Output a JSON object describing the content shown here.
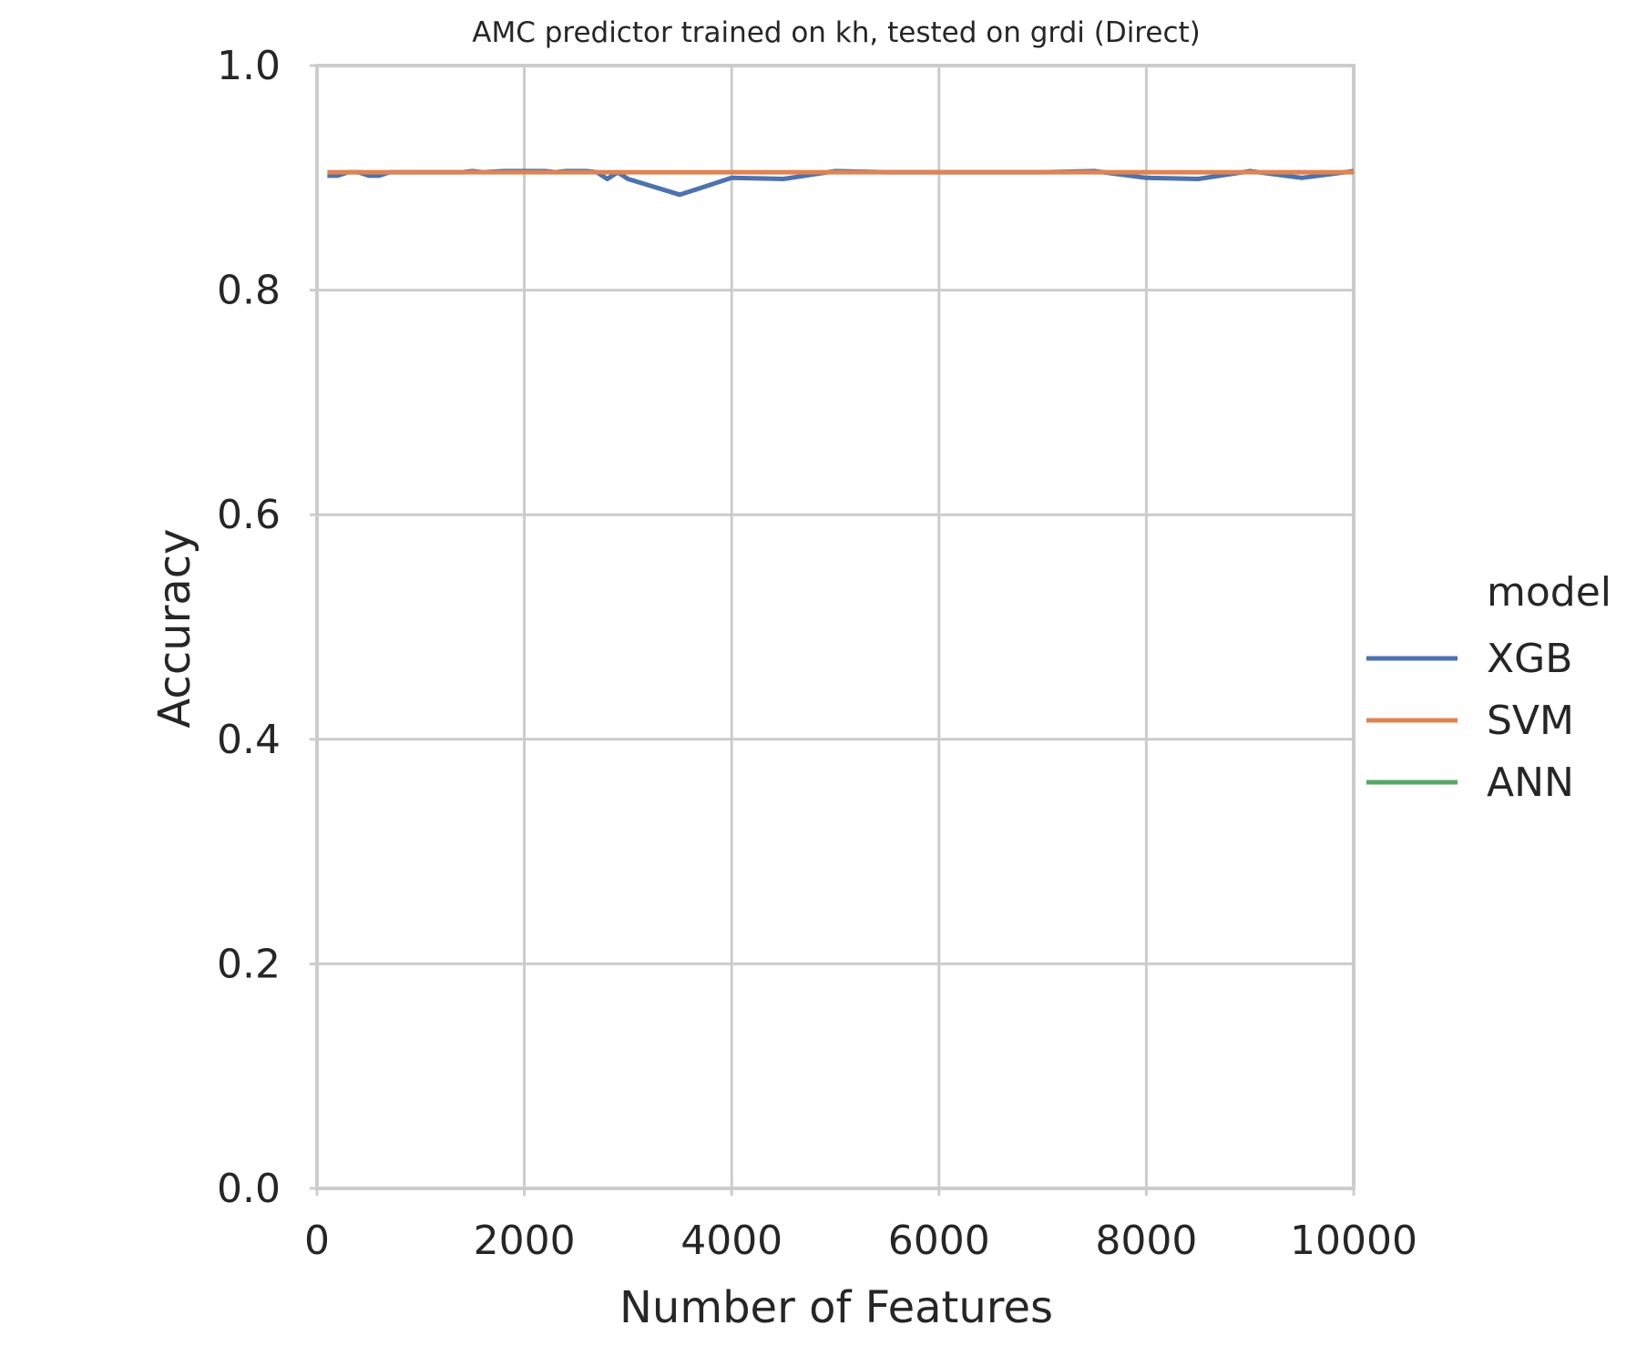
{
  "chart_data": {
    "type": "line",
    "title": "AMC predictor trained on kh, tested on grdi (Direct)",
    "xlabel": "Number of Features",
    "ylabel": "Accuracy",
    "xlim": [
      0,
      10000
    ],
    "ylim": [
      0.0,
      1.0
    ],
    "xticks": [
      "0",
      "2000",
      "4000",
      "6000",
      "8000",
      "10000"
    ],
    "yticks": [
      "0.0",
      "0.2",
      "0.4",
      "0.6",
      "0.8",
      "1.0"
    ],
    "grid": true,
    "legend": {
      "title": "model",
      "placement": "right"
    },
    "series": [
      {
        "name": "XGB",
        "color": "#4c72b0",
        "points": [
          [
            100,
            0.902
          ],
          [
            200,
            0.902
          ],
          [
            300,
            0.905
          ],
          [
            400,
            0.905
          ],
          [
            500,
            0.902
          ],
          [
            600,
            0.902
          ],
          [
            700,
            0.905
          ],
          [
            800,
            0.905
          ],
          [
            900,
            0.905
          ],
          [
            1000,
            0.905
          ],
          [
            1200,
            0.905
          ],
          [
            1400,
            0.905
          ],
          [
            1500,
            0.906
          ],
          [
            1600,
            0.905
          ],
          [
            1800,
            0.906
          ],
          [
            2000,
            0.906
          ],
          [
            2200,
            0.906
          ],
          [
            2300,
            0.905
          ],
          [
            2400,
            0.906
          ],
          [
            2600,
            0.906
          ],
          [
            2700,
            0.905
          ],
          [
            2800,
            0.899
          ],
          [
            2900,
            0.905
          ],
          [
            3000,
            0.899
          ],
          [
            3500,
            0.885
          ],
          [
            4000,
            0.9
          ],
          [
            4500,
            0.899
          ],
          [
            5000,
            0.906
          ],
          [
            5500,
            0.905
          ],
          [
            6000,
            0.905
          ],
          [
            6500,
            0.905
          ],
          [
            7000,
            0.905
          ],
          [
            7500,
            0.906
          ],
          [
            8000,
            0.9
          ],
          [
            8500,
            0.899
          ],
          [
            9000,
            0.906
          ],
          [
            9500,
            0.9
          ],
          [
            10000,
            0.906
          ]
        ]
      },
      {
        "name": "SVM",
        "color": "#dd8452",
        "points": [
          [
            100,
            0.905
          ],
          [
            10000,
            0.905
          ]
        ]
      },
      {
        "name": "ANN",
        "color": "#55a868",
        "points": []
      }
    ]
  }
}
